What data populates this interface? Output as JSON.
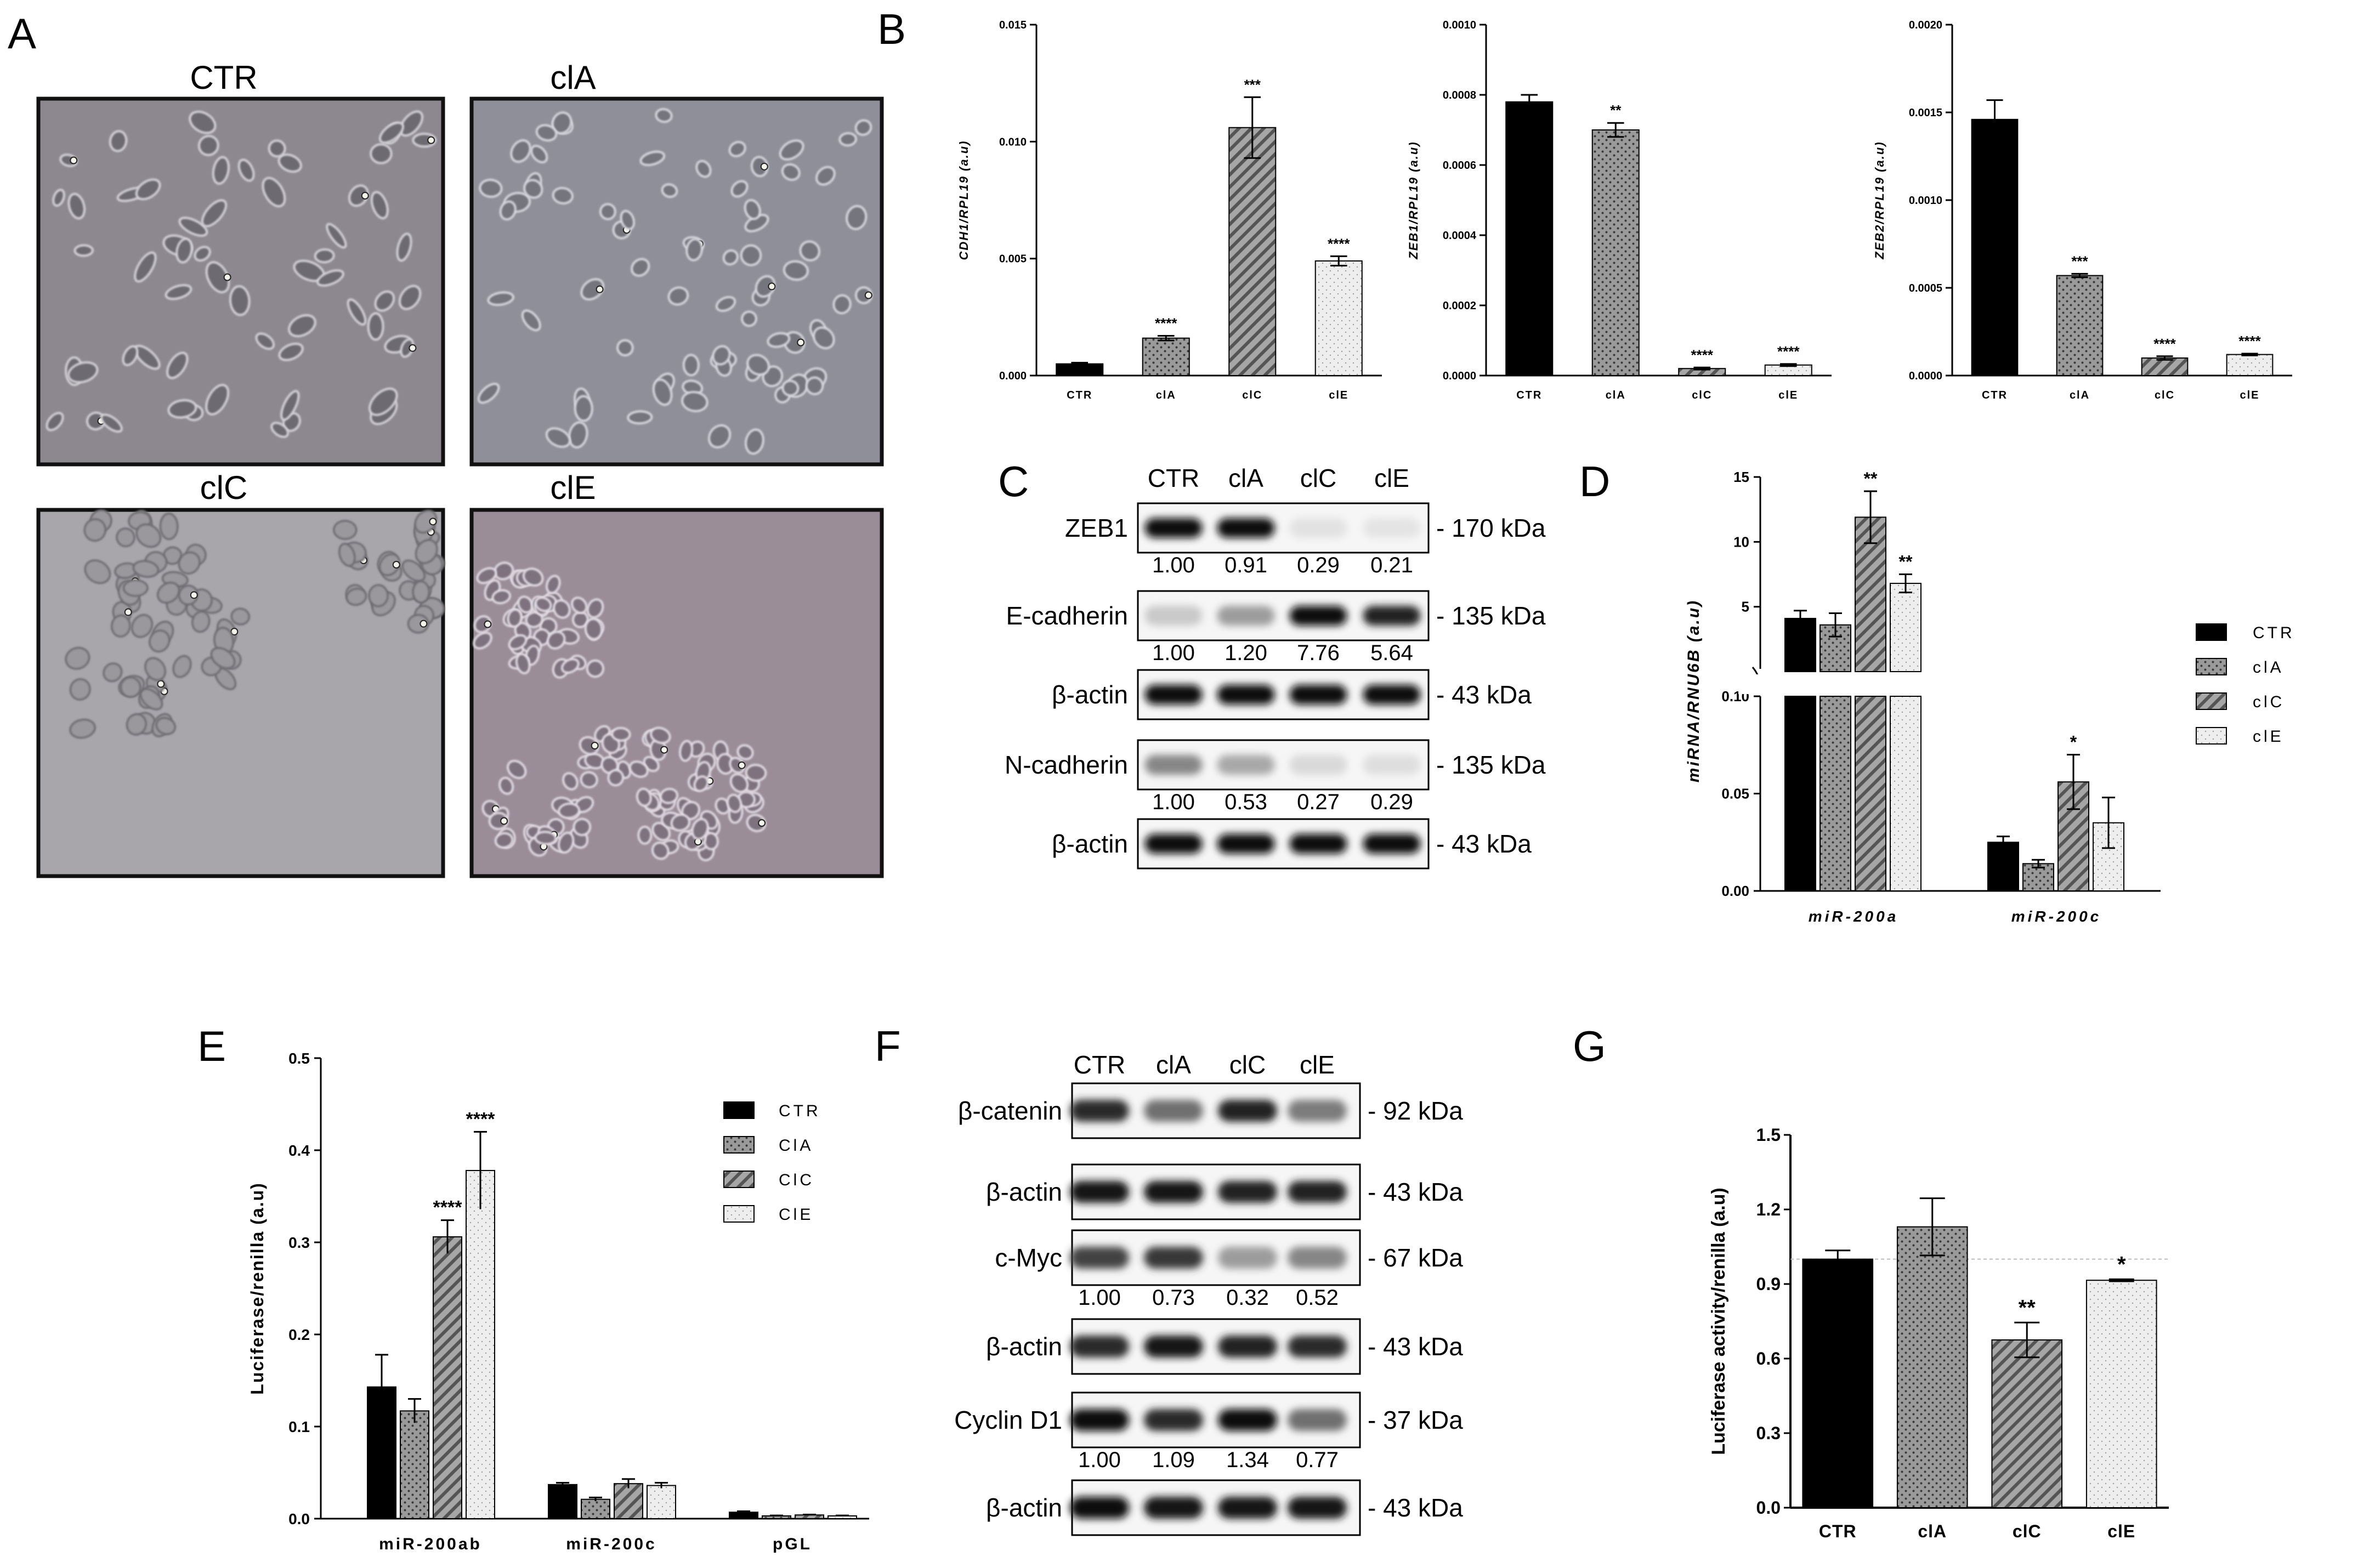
{
  "colors": {
    "ctr": "#000000",
    "cla": "#8a8a8a",
    "clc": "#7a7a7a",
    "cle": "#e8e8e8"
  },
  "panelA": {
    "letter": "A",
    "images": [
      {
        "label": "CTR",
        "texture": "mesenchymal"
      },
      {
        "label": "clA",
        "texture": "mixed"
      },
      {
        "label": "clC",
        "texture": "epithelial-pale"
      },
      {
        "label": "clE",
        "texture": "epithelial-colonies"
      }
    ]
  },
  "panelB": {
    "letter": "B",
    "charts": [
      {
        "type": "bar",
        "ylabel": "CDH1/RPL19 (a.u)",
        "categories": [
          "CTR",
          "clA",
          "clC",
          "clE"
        ],
        "values": [
          0.0005,
          0.0016,
          0.0106,
          0.0049
        ],
        "errors": [
          5e-05,
          0.0001,
          0.0013,
          0.0002
        ],
        "stars": [
          "",
          "****",
          "***",
          "****"
        ],
        "ylim": [
          0,
          0.015
        ],
        "ticks": [
          "0.000",
          "0.005",
          "0.010",
          "0.015"
        ],
        "tickValues": [
          0,
          0.005,
          0.01,
          0.015
        ]
      },
      {
        "type": "bar",
        "ylabel": "ZEB1/RPL19 (a.u)",
        "categories": [
          "CTR",
          "clA",
          "clC",
          "clE"
        ],
        "values": [
          0.00078,
          0.0007,
          2e-05,
          3e-05
        ],
        "errors": [
          2e-05,
          2e-05,
          3e-06,
          3e-06
        ],
        "stars": [
          "",
          "**",
          "****",
          "****"
        ],
        "ylim": [
          0,
          0.001
        ],
        "ticks": [
          "0.0000",
          "0.0002",
          "0.0004",
          "0.0006",
          "0.0008",
          "0.0010"
        ],
        "tickValues": [
          0,
          0.0002,
          0.0004,
          0.0006,
          0.0008,
          0.001
        ]
      },
      {
        "type": "bar",
        "ylabel": "ZEB2/RPL19 (a.u)",
        "categories": [
          "CTR",
          "clA",
          "clC",
          "clE"
        ],
        "values": [
          0.00146,
          0.00057,
          0.0001,
          0.00012
        ],
        "errors": [
          0.00011,
          1e-05,
          1e-05,
          5e-06
        ],
        "stars": [
          "",
          "***",
          "****",
          "****"
        ],
        "ylim": [
          0,
          0.002
        ],
        "ticks": [
          "0.0000",
          "0.0005",
          "0.0010",
          "0.0015",
          "0.0020"
        ],
        "tickValues": [
          0,
          0.0005,
          0.001,
          0.0015,
          0.002
        ]
      }
    ]
  },
  "panelC": {
    "letter": "C",
    "header": [
      "CTR",
      "clA",
      "clC",
      "clE"
    ],
    "rows": [
      {
        "label": "ZEB1",
        "kda": "- 170 kDa",
        "intensity": [
          1,
          1,
          0.04,
          0.03
        ],
        "nums": [
          "1.00",
          "0.91",
          "0.29",
          "0.21"
        ]
      },
      {
        "label": "E-cadherin",
        "kda": "- 135 kDa",
        "intensity": [
          0.15,
          0.35,
          1,
          0.9
        ],
        "nums": [
          "1.00",
          "1.20",
          "7.76",
          "5.64"
        ]
      },
      {
        "label": "β-actin",
        "kda": "- 43 kDa",
        "intensity": [
          1,
          1,
          1,
          1
        ],
        "nums": []
      },
      {
        "label": "N-cadherin",
        "kda": "- 135 kDa",
        "intensity": [
          0.45,
          0.3,
          0.08,
          0.06
        ],
        "nums": [
          "1.00",
          "0.53",
          "0.27",
          "0.29"
        ]
      },
      {
        "label": "β-actin",
        "kda": "- 43 kDa",
        "intensity": [
          1,
          1,
          1,
          1
        ],
        "nums": []
      }
    ]
  },
  "panelD": {
    "letter": "D",
    "ylabel": "miRNA/RNU6B (a.u)",
    "groups": [
      "miR-200a",
      "miR-200c"
    ],
    "legend": [
      "CTR",
      "clA",
      "clC",
      "clE"
    ],
    "upper": {
      "ylim": [
        0,
        15
      ],
      "ticks": [
        "5",
        "10",
        "15"
      ],
      "tickValues": [
        5,
        10,
        15
      ]
    },
    "lower": {
      "ylim": [
        0,
        0.1
      ],
      "ticks": [
        "0.00",
        "0.05",
        "0.10"
      ],
      "tickValues": [
        0,
        0.05,
        0.1
      ]
    },
    "series": [
      {
        "name": "CTR",
        "values": [
          4.1,
          0.025
        ],
        "errors": [
          0.6,
          0.003
        ],
        "stars": [
          "",
          ""
        ]
      },
      {
        "name": "clA",
        "values": [
          3.6,
          0.014
        ],
        "errors": [
          0.9,
          0.002
        ],
        "stars": [
          "",
          ""
        ]
      },
      {
        "name": "clC",
        "values": [
          11.9,
          0.056
        ],
        "errors": [
          2.0,
          0.014
        ],
        "stars": [
          "**",
          "*"
        ]
      },
      {
        "name": "clE",
        "values": [
          6.8,
          0.035
        ],
        "errors": [
          0.7,
          0.013
        ],
        "stars": [
          "**",
          ""
        ]
      }
    ]
  },
  "panelE": {
    "letter": "E",
    "ylabel": "Luciferase/renilla (a.u)",
    "groups": [
      "miR-200ab",
      "miR-200c",
      "pGL"
    ],
    "legend": [
      "CTR",
      "ClA",
      "ClC",
      "ClE"
    ],
    "ylim": [
      0,
      0.5
    ],
    "ticks": [
      "0.0",
      "0.1",
      "0.2",
      "0.3",
      "0.4",
      "0.5"
    ],
    "tickValues": [
      0,
      0.1,
      0.2,
      0.3,
      0.4,
      0.5
    ],
    "series": [
      {
        "name": "CTR",
        "values": [
          0.143,
          0.037,
          0.007
        ],
        "errors": [
          0.035,
          0.002,
          0.001
        ],
        "stars": [
          "",
          "",
          ""
        ]
      },
      {
        "name": "ClA",
        "values": [
          0.117,
          0.021,
          0.003
        ],
        "errors": [
          0.013,
          0.002,
          0.0005
        ],
        "stars": [
          "",
          "",
          ""
        ]
      },
      {
        "name": "ClC",
        "values": [
          0.306,
          0.038,
          0.004
        ],
        "errors": [
          0.018,
          0.005,
          0.0005
        ],
        "stars": [
          "****",
          "",
          ""
        ]
      },
      {
        "name": "ClE",
        "values": [
          0.378,
          0.036,
          0.003
        ],
        "errors": [
          0.042,
          0.003,
          0.0005
        ],
        "stars": [
          "****",
          "",
          ""
        ]
      }
    ]
  },
  "panelF": {
    "letter": "F",
    "header": [
      "CTR",
      "clA",
      "clC",
      "clE"
    ],
    "rows": [
      {
        "label": "β-catenin",
        "kda": "- 92 kDa",
        "intensity": [
          0.85,
          0.55,
          0.9,
          0.5
        ],
        "nums": []
      },
      {
        "label": "β-actin",
        "kda": "- 43 kDa",
        "intensity": [
          0.95,
          0.95,
          0.9,
          0.9
        ],
        "nums": []
      },
      {
        "label": "c-Myc",
        "kda": "- 67 kDa",
        "intensity": [
          0.75,
          0.8,
          0.35,
          0.45
        ],
        "nums": [
          "1.00",
          "0.73",
          "0.32",
          "0.52"
        ]
      },
      {
        "label": "β-actin",
        "kda": "- 43 kDa",
        "intensity": [
          0.85,
          0.95,
          0.9,
          0.85
        ],
        "nums": []
      },
      {
        "label": "Cyclin D1",
        "kda": "- 37 kDa",
        "intensity": [
          1,
          0.85,
          1,
          0.55
        ],
        "nums": [
          "1.00",
          "1.09",
          "1.34",
          "0.77"
        ]
      },
      {
        "label": "β-actin",
        "kda": "- 43 kDa",
        "intensity": [
          1,
          0.95,
          0.95,
          0.95
        ],
        "nums": []
      }
    ]
  },
  "panelG": {
    "letter": "G",
    "chart_data": {
      "type": "bar",
      "ylabel": "Luciferase activity/renilla (a.u)",
      "categories": [
        "CTR",
        "clA",
        "clC",
        "clE"
      ],
      "values": [
        1.0,
        1.13,
        0.675,
        0.915
      ],
      "errors": [
        0.035,
        0.115,
        0.07,
        0.004
      ],
      "stars": [
        "",
        "",
        "**",
        "*"
      ],
      "ylim": [
        0,
        1.5
      ],
      "ticks": [
        "0.0",
        "0.3",
        "0.6",
        "0.9",
        "1.2",
        "1.5"
      ],
      "tickValues": [
        0,
        0.3,
        0.6,
        0.9,
        1.2,
        1.5
      ],
      "reference_line": 1.0
    }
  }
}
